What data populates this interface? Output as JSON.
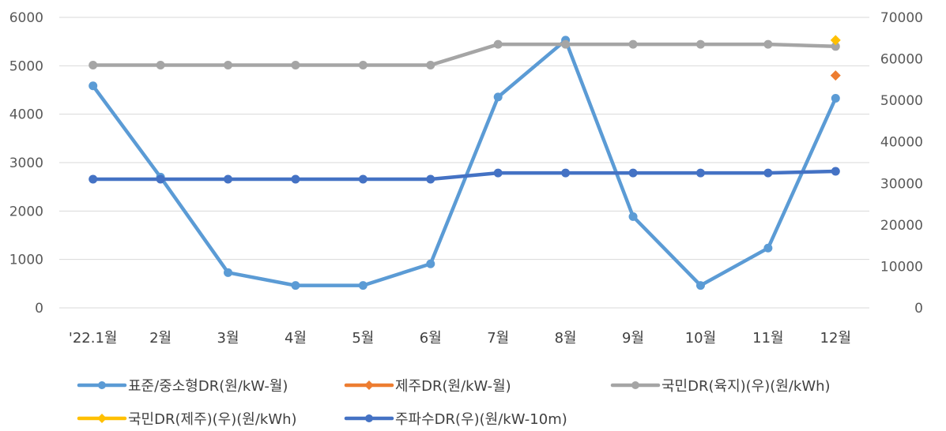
{
  "chart_data": {
    "type": "line",
    "categories": [
      "'22.1월",
      "2월",
      "3월",
      "4월",
      "5월",
      "6월",
      "7월",
      "8월",
      "9월",
      "10월",
      "11월",
      "12월"
    ],
    "y_left": {
      "ylim": [
        0,
        6000
      ],
      "ticks": [
        0,
        1000,
        2000,
        3000,
        4000,
        5000,
        6000
      ]
    },
    "y_right": {
      "ylim": [
        0,
        70000
      ],
      "ticks": [
        0,
        10000,
        20000,
        30000,
        40000,
        50000,
        60000,
        70000
      ]
    },
    "grid": true,
    "legend_position": "bottom",
    "series": [
      {
        "name": "표준/중소형DR(원/kW-월)",
        "axis": "right",
        "color": "#5B9BD5",
        "marker": "circle",
        "values": [
          53500,
          31500,
          8500,
          5400,
          5400,
          10600,
          50800,
          64500,
          22000,
          5400,
          14400,
          50500
        ]
      },
      {
        "name": "제주DR(원/kW-월)",
        "axis": "right",
        "color": "#ED7D31",
        "marker": "diamond",
        "values": [
          null,
          null,
          null,
          null,
          null,
          null,
          null,
          null,
          null,
          null,
          null,
          56000
        ]
      },
      {
        "name": "국민DR(육지)(우)(원/kWh)",
        "axis": "right",
        "color": "#A5A5A5",
        "marker": "circle",
        "values": [
          58500,
          58500,
          58500,
          58500,
          58500,
          58500,
          63500,
          63500,
          63500,
          63500,
          63500,
          63000
        ]
      },
      {
        "name": "국민DR(제주)(우)(원/kWh)",
        "axis": "right",
        "color": "#FFC000",
        "marker": "diamond",
        "values": [
          null,
          null,
          null,
          null,
          null,
          null,
          null,
          null,
          null,
          null,
          null,
          64500
        ]
      },
      {
        "name": "주파수DR(우)(원/kW-10m)",
        "axis": "right",
        "color": "#4472C4",
        "marker": "circle",
        "values": [
          31000,
          31000,
          31000,
          31000,
          31000,
          31000,
          32500,
          32500,
          32500,
          32500,
          32500,
          32900
        ]
      }
    ]
  }
}
